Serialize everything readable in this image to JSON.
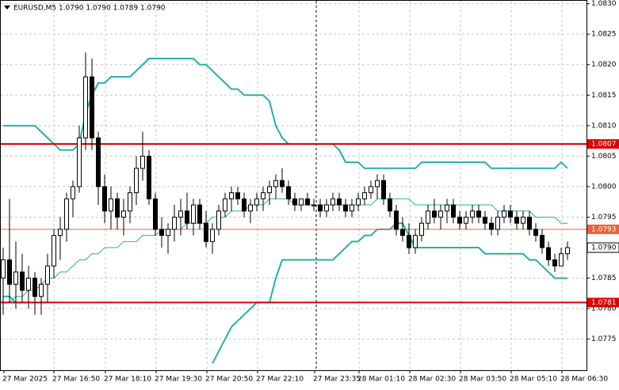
{
  "chart_data": {
    "type": "candlestick",
    "title": "EURUSD,M5  1.0790 1.0790 1.0789 1.0790",
    "ylim": [
      1.07699,
      1.08306
    ],
    "yticks": [
      {
        "value": 1.083,
        "label": "1.0830"
      },
      1.0825,
      {
        "value": 1.082,
        "label": "1.0820"
      },
      1.0815,
      {
        "value": 1.081,
        "label": "1.0810"
      },
      1.0805,
      {
        "value": 1.08,
        "label": "1.0800"
      },
      1.0795,
      1.0785,
      {
        "value": 1.078,
        "label": "1.0780"
      },
      1.0775
    ],
    "grid": true,
    "time_labels": [
      "27 Mar 2025",
      "27 Mar 16:50",
      "27 Mar 18:10",
      "27 Mar 19:30",
      "27 Mar 20:50",
      "27 Mar 22:10",
      "27 Mar 23:35",
      "28 Mar 01:10",
      "28 Mar 02:30",
      "28 Mar 03:50",
      "28 Mar 05:10",
      "28 Mar 06:30"
    ],
    "bull_color": "#ffffff",
    "bear_color": "#000000",
    "candles": [
      [
        1.0785,
        1.079,
        1.0779,
        1.0788
      ],
      [
        1.0788,
        1.0798,
        1.0781,
        1.0784
      ],
      [
        1.0784,
        1.0791,
        1.078,
        1.0786
      ],
      [
        1.0786,
        1.0789,
        1.0781,
        1.0783
      ],
      [
        1.0783,
        1.0787,
        1.078,
        1.0785
      ],
      [
        1.0785,
        1.0786,
        1.0779,
        1.0782
      ],
      [
        1.0782,
        1.0785,
        1.0779,
        1.0784
      ],
      [
        1.0784,
        1.0789,
        1.0781,
        1.0787
      ],
      [
        1.0787,
        1.0793,
        1.0785,
        1.0792
      ],
      [
        1.0792,
        1.0795,
        1.0788,
        1.0793
      ],
      [
        1.0793,
        1.0799,
        1.0791,
        1.0798
      ],
      [
        1.0798,
        1.0801,
        1.0795,
        1.08
      ],
      [
        1.08,
        1.081,
        1.0799,
        1.0808
      ],
      [
        1.0808,
        1.0822,
        1.0806,
        1.0818
      ],
      [
        1.0818,
        1.0821,
        1.0806,
        1.0808
      ],
      [
        1.0808,
        1.0809,
        1.0797,
        1.08
      ],
      [
        1.08,
        1.0802,
        1.0794,
        1.0796
      ],
      [
        1.0796,
        1.08,
        1.0793,
        1.0798
      ],
      [
        1.0798,
        1.0799,
        1.0793,
        1.0795
      ],
      [
        1.0795,
        1.0798,
        1.0792,
        1.0796
      ],
      [
        1.0796,
        1.08,
        1.0794,
        1.0799
      ],
      [
        1.0799,
        1.0805,
        1.0797,
        1.0803
      ],
      [
        1.0803,
        1.0809,
        1.0801,
        1.0805
      ],
      [
        1.0805,
        1.0806,
        1.0797,
        1.0798
      ],
      [
        1.0798,
        1.0799,
        1.0792,
        1.0793
      ],
      [
        1.0793,
        1.0795,
        1.079,
        1.0792
      ],
      [
        1.0792,
        1.0794,
        1.0789,
        1.0793
      ],
      [
        1.0793,
        1.0797,
        1.0791,
        1.0795
      ],
      [
        1.0795,
        1.0798,
        1.0792,
        1.0796
      ],
      [
        1.0796,
        1.0799,
        1.0793,
        1.0794
      ],
      [
        1.0794,
        1.0798,
        1.0792,
        1.0797
      ],
      [
        1.0797,
        1.0798,
        1.0793,
        1.0794
      ],
      [
        1.0794,
        1.0796,
        1.079,
        1.0791
      ],
      [
        1.0791,
        1.0794,
        1.0789,
        1.0793
      ],
      [
        1.0793,
        1.0797,
        1.0792,
        1.0796
      ],
      [
        1.0796,
        1.0799,
        1.0795,
        1.0798
      ],
      [
        1.0798,
        1.08,
        1.0796,
        1.0799
      ],
      [
        1.0799,
        1.08,
        1.0797,
        1.0798
      ],
      [
        1.0798,
        1.0799,
        1.0795,
        1.0796
      ],
      [
        1.0796,
        1.0798,
        1.0794,
        1.0797
      ],
      [
        1.0797,
        1.0799,
        1.0796,
        1.0798
      ],
      [
        1.0798,
        1.08,
        1.0796,
        1.0799
      ],
      [
        1.0799,
        1.0801,
        1.0797,
        1.08
      ],
      [
        1.08,
        1.0802,
        1.0798,
        1.0801
      ],
      [
        1.0801,
        1.0803,
        1.0799,
        1.08
      ],
      [
        1.08,
        1.0801,
        1.0797,
        1.0798
      ],
      [
        1.0798,
        1.0799,
        1.0796,
        1.0797
      ],
      [
        1.0797,
        1.0798,
        1.0796,
        1.0798
      ],
      [
        1.0798,
        1.0799,
        1.0797,
        1.0797
      ],
      [
        1.0797,
        1.0798,
        1.0796,
        1.0797
      ],
      [
        1.0797,
        1.0798,
        1.0795,
        1.0796
      ],
      [
        1.0796,
        1.0798,
        1.0795,
        1.0797
      ],
      [
        1.0797,
        1.0799,
        1.0796,
        1.0798
      ],
      [
        1.0798,
        1.0799,
        1.0796,
        1.0797
      ],
      [
        1.0797,
        1.0798,
        1.0795,
        1.0796
      ],
      [
        1.0796,
        1.0798,
        1.0795,
        1.0797
      ],
      [
        1.0797,
        1.0799,
        1.0796,
        1.0798
      ],
      [
        1.0798,
        1.08,
        1.0797,
        1.0799
      ],
      [
        1.0799,
        1.0801,
        1.0798,
        1.08
      ],
      [
        1.08,
        1.0802,
        1.0798,
        1.0801
      ],
      [
        1.0801,
        1.0802,
        1.0797,
        1.0798
      ],
      [
        1.0798,
        1.0799,
        1.0795,
        1.0796
      ],
      [
        1.0796,
        1.0797,
        1.0792,
        1.0793
      ],
      [
        1.0793,
        1.0795,
        1.0791,
        1.0792
      ],
      [
        1.0792,
        1.0794,
        1.0789,
        1.079
      ],
      [
        1.079,
        1.0793,
        1.0789,
        1.0792
      ],
      [
        1.0792,
        1.0795,
        1.0791,
        1.0794
      ],
      [
        1.0794,
        1.0797,
        1.0793,
        1.0796
      ],
      [
        1.0796,
        1.0798,
        1.0794,
        1.0795
      ],
      [
        1.0795,
        1.0797,
        1.0793,
        1.0796
      ],
      [
        1.0796,
        1.0798,
        1.0794,
        1.0797
      ],
      [
        1.0797,
        1.0798,
        1.0794,
        1.0795
      ],
      [
        1.0795,
        1.0796,
        1.0793,
        1.0794
      ],
      [
        1.0794,
        1.0796,
        1.0793,
        1.0795
      ],
      [
        1.0795,
        1.0797,
        1.0794,
        1.0796
      ],
      [
        1.0796,
        1.0797,
        1.0794,
        1.0795
      ],
      [
        1.0795,
        1.0796,
        1.0793,
        1.0794
      ],
      [
        1.0794,
        1.0795,
        1.0792,
        1.0793
      ],
      [
        1.0793,
        1.0796,
        1.0792,
        1.0795
      ],
      [
        1.0795,
        1.0797,
        1.0794,
        1.0796
      ],
      [
        1.0796,
        1.0797,
        1.0794,
        1.0795
      ],
      [
        1.0795,
        1.0796,
        1.0793,
        1.0794
      ],
      [
        1.0794,
        1.0796,
        1.0793,
        1.0795
      ],
      [
        1.0795,
        1.0796,
        1.0792,
        1.0793
      ],
      [
        1.0793,
        1.0794,
        1.0791,
        1.0792
      ],
      [
        1.0792,
        1.0793,
        1.0789,
        1.079
      ],
      [
        1.079,
        1.0791,
        1.0787,
        1.0788
      ],
      [
        1.0788,
        1.0789,
        1.0786,
        1.0787
      ],
      [
        1.0787,
        1.079,
        1.0787,
        1.0789
      ],
      [
        1.0789,
        1.0791,
        1.0788,
        1.079
      ]
    ],
    "bands": [
      {
        "color": "#26b0a6",
        "width": 2,
        "values": [
          1.081,
          1.081,
          1.081,
          1.081,
          1.081,
          1.081,
          1.0809,
          1.0808,
          1.0807,
          1.0806,
          1.0806,
          1.0806,
          1.0807,
          1.0812,
          1.0815,
          1.0817,
          1.0817,
          1.0818,
          1.0818,
          1.0818,
          1.0818,
          1.0819,
          1.082,
          1.0821,
          1.0821,
          1.0821,
          1.0821,
          1.0821,
          1.0821,
          1.0821,
          1.0821,
          1.082,
          1.082,
          1.0819,
          1.0818,
          1.0817,
          1.0816,
          1.0816,
          1.0815,
          1.0815,
          1.0815,
          1.0815,
          1.0814,
          1.081,
          1.0808,
          1.0807,
          1.0807,
          1.0807,
          1.0807,
          1.0807,
          1.0807,
          1.0807,
          1.0807,
          1.0806,
          1.0804,
          1.0804,
          1.0804,
          1.0803,
          1.0803,
          1.0803,
          1.0803,
          1.0803,
          1.0803,
          1.0803,
          1.0803,
          1.0803,
          1.0804,
          1.0804,
          1.0804,
          1.0804,
          1.0804,
          1.0804,
          1.0804,
          1.0804,
          1.0804,
          1.0804,
          1.0804,
          1.0803,
          1.0803,
          1.0803,
          1.0803,
          1.0803,
          1.0803,
          1.0803,
          1.0803,
          1.0803,
          1.0803,
          1.0803,
          1.0804,
          1.0803
        ]
      },
      {
        "color": "#26b0a6",
        "width": 1,
        "values": [
          1.0781,
          1.0781,
          1.0782,
          1.0782,
          1.0783,
          1.0783,
          1.0784,
          1.0785,
          1.0785,
          1.0786,
          1.0786,
          1.0787,
          1.0788,
          1.0788,
          1.0789,
          1.0789,
          1.079,
          1.079,
          1.079,
          1.0791,
          1.0791,
          1.0791,
          1.0792,
          1.0792,
          1.0792,
          1.0793,
          1.0793,
          1.0793,
          1.0793,
          1.0794,
          1.0794,
          1.0794,
          1.0794,
          1.0795,
          1.0795,
          1.0795,
          1.0796,
          1.0796,
          1.0796,
          1.0797,
          1.0797,
          1.0797,
          1.0798,
          1.0798,
          1.0798,
          1.0798,
          1.0797,
          1.0797,
          1.0797,
          1.0797,
          1.0797,
          1.0797,
          1.0797,
          1.0797,
          1.0797,
          1.0797,
          1.0797,
          1.0797,
          1.0797,
          1.0798,
          1.0798,
          1.0798,
          1.0798,
          1.0798,
          1.0798,
          1.0797,
          1.0797,
          1.0797,
          1.0797,
          1.0797,
          1.0797,
          1.0797,
          1.0797,
          1.0797,
          1.0797,
          1.0797,
          1.0797,
          1.0797,
          1.0796,
          1.0796,
          1.0796,
          1.0796,
          1.0796,
          1.0796,
          1.0795,
          1.0795,
          1.0795,
          1.0795,
          1.0794,
          1.0794
        ]
      },
      {
        "color": "#26b0a6",
        "width": 2,
        "values": [
          1.0782,
          1.0782,
          1.0781,
          1.0781,
          1.0781,
          1.0781,
          1.0781,
          1.0781,
          null,
          null,
          null,
          null,
          null,
          null,
          null,
          null,
          null,
          null,
          null,
          null,
          null,
          null,
          null,
          null,
          null,
          null,
          null,
          null,
          null,
          null,
          null,
          null,
          null,
          1.0771,
          1.0773,
          1.0775,
          1.0777,
          1.0778,
          1.0779,
          1.078,
          1.0781,
          1.0781,
          1.0781,
          1.0785,
          1.0788,
          1.0788,
          1.0788,
          1.0788,
          1.0788,
          1.0788,
          1.0788,
          1.0788,
          1.0788,
          1.0789,
          1.079,
          1.0791,
          1.0791,
          1.0792,
          1.0792,
          1.0793,
          1.0793,
          1.0793,
          1.0794,
          1.0794,
          1.0792,
          1.079,
          1.079,
          1.079,
          1.079,
          1.079,
          1.079,
          1.079,
          1.079,
          1.079,
          1.079,
          1.079,
          1.0789,
          1.0789,
          1.0789,
          1.0789,
          1.0789,
          1.0789,
          1.0789,
          1.0788,
          1.0788,
          1.0787,
          1.0786,
          1.0785,
          1.0785,
          1.0785
        ]
      }
    ],
    "levels": [
      {
        "value": 1.0807,
        "color": "#e00000",
        "width": 2
      },
      {
        "value": 1.0793,
        "color": "#f0603a",
        "width": 1
      },
      {
        "value": 1.0781,
        "color": "#e00000",
        "width": 2
      }
    ],
    "current_price": {
      "value": 1.079,
      "label": "1.0790"
    }
  }
}
